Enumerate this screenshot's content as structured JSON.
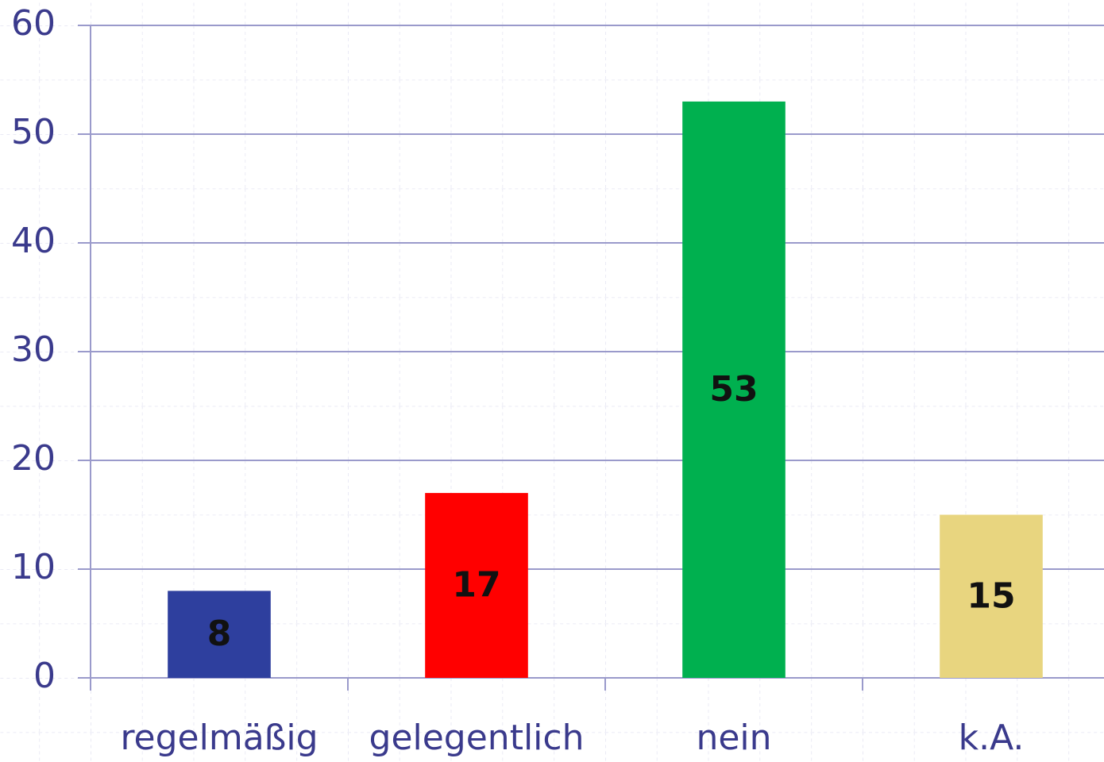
{
  "chart_data": {
    "type": "bar",
    "categories": [
      "regelmäßig",
      "gelegentlich",
      "nein",
      "k.A."
    ],
    "values": [
      8,
      17,
      53,
      15
    ],
    "colors": [
      "#2e3f9e",
      "#ff0000",
      "#00b04f",
      "#e8d57f"
    ],
    "ylim": [
      0,
      60
    ],
    "yticks": [
      0,
      10,
      20,
      30,
      40,
      50,
      60
    ],
    "grid": true
  }
}
